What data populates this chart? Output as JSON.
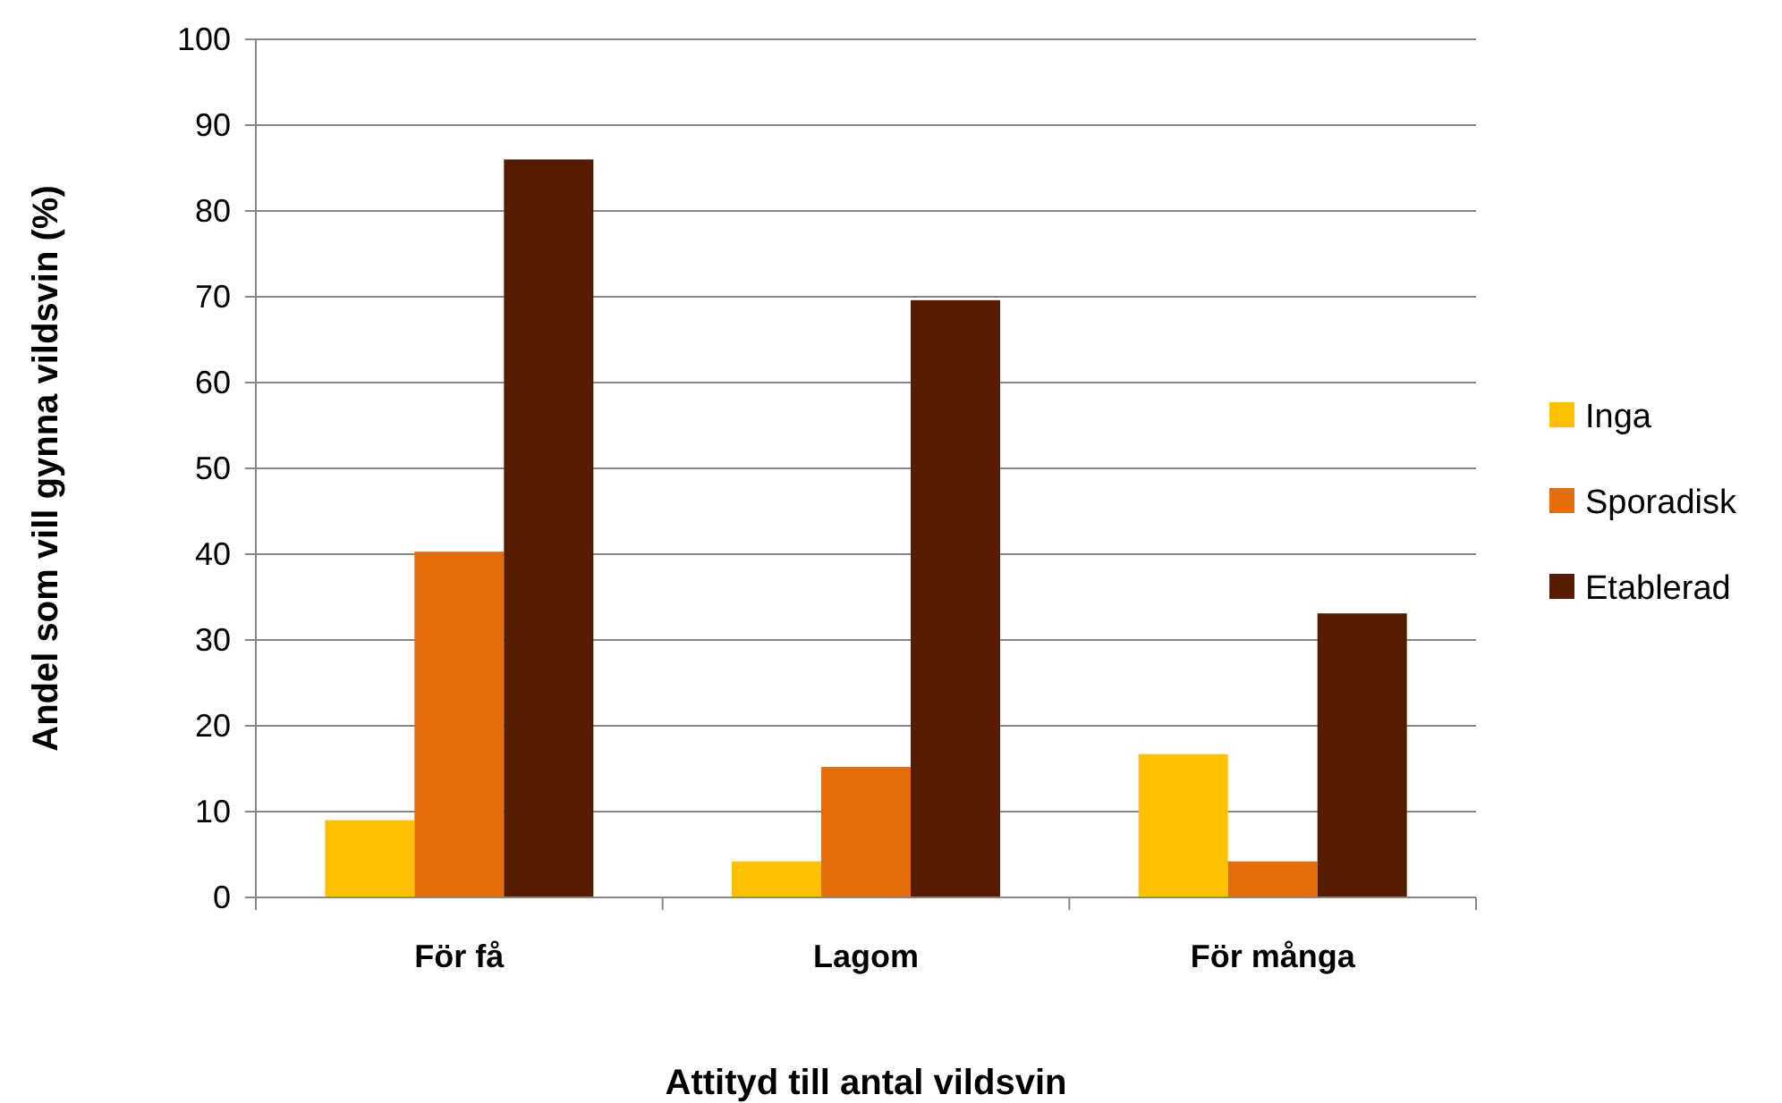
{
  "chart_data": {
    "type": "bar",
    "xlabel": "Attityd till antal vildsvin",
    "ylabel": "Andel som vill gynna vildsvin (%)",
    "categories": [
      "För få",
      "Lagom",
      "För många"
    ],
    "series": [
      {
        "name": "Inga",
        "color": "#ffc000",
        "values": [
          9,
          4.2,
          16.7
        ]
      },
      {
        "name": "Sporadisk",
        "color": "#e46c0a",
        "values": [
          40.3,
          15.2,
          4.2
        ]
      },
      {
        "name": "Etablerad",
        "color": "#561c00",
        "values": [
          86,
          69.6,
          33.1
        ]
      }
    ],
    "ylim": [
      0,
      100
    ],
    "yticks": [
      0,
      10,
      20,
      30,
      40,
      50,
      60,
      70,
      80,
      90,
      100
    ],
    "grid": "y",
    "legend": "right"
  }
}
